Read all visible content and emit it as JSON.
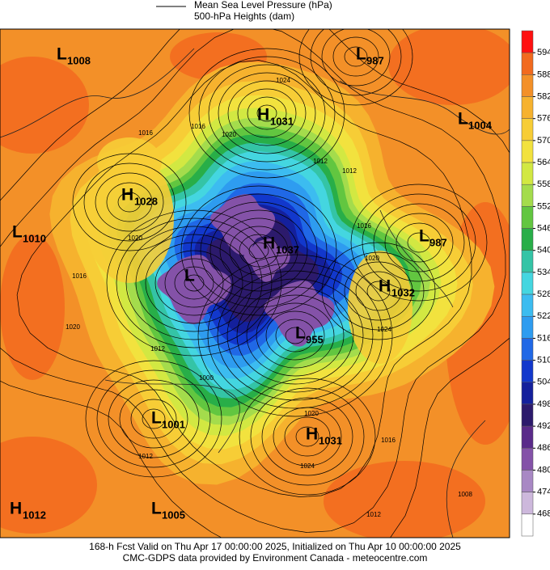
{
  "legend": {
    "items": [
      "Mean Sea Level Pressure (hPa)",
      "500-hPa Heights (dam)"
    ]
  },
  "colorbar": {
    "levels": [
      594,
      588,
      582,
      576,
      570,
      564,
      558,
      552,
      546,
      540,
      534,
      528,
      522,
      516,
      510,
      504,
      498,
      492,
      486,
      480,
      474,
      468
    ],
    "colors": [
      "#ff1010",
      "#f26a1e",
      "#f39028",
      "#f6b22e",
      "#f7cd36",
      "#f2e23e",
      "#d2e842",
      "#a4dc4c",
      "#62c640",
      "#28ae48",
      "#34c4a6",
      "#44d6e0",
      "#3cbcf0",
      "#2e9cf0",
      "#2068e6",
      "#1238cc",
      "#14209c",
      "#2c1a6c",
      "#5a2a8a",
      "#8452a8",
      "#a888c4",
      "#cdb8dc",
      "#ffffff"
    ]
  },
  "pressure_centers": [
    {
      "type": "L",
      "value": "1008"
    },
    {
      "type": "L",
      "value": "987"
    },
    {
      "type": "H",
      "value": "1031"
    },
    {
      "type": "L",
      "value": "1004"
    },
    {
      "type": "H",
      "value": "1028"
    },
    {
      "type": "L",
      "value": "1010"
    },
    {
      "type": "L",
      "value": "987"
    },
    {
      "type": "H",
      "value": "1037"
    },
    {
      "type": "L"
    },
    {
      "type": "H",
      "value": "1032"
    },
    {
      "type": "L",
      "value": "955"
    },
    {
      "type": "L",
      "value": "1001"
    },
    {
      "type": "H",
      "value": "1031"
    },
    {
      "type": "H",
      "value": "1012"
    },
    {
      "type": "L",
      "value": "1005"
    }
  ],
  "isobar_labels": [
    "1024",
    "1016",
    "1016",
    "1020",
    "1012",
    "1012",
    "1016",
    "1020",
    "1020",
    "1024",
    "1016",
    "1012",
    "1000",
    "1020",
    "1024",
    "1016",
    "1012",
    "1008",
    "1012",
    "1020"
  ],
  "footer": {
    "line1": "168-h Fcst Valid on Thu Apr 17 00:00:00 2025, Initialized on Thu Apr 10 00:00:00 2025",
    "line2": "CMC-GDPS data provided by Environment Canada - meteocentre.com"
  }
}
